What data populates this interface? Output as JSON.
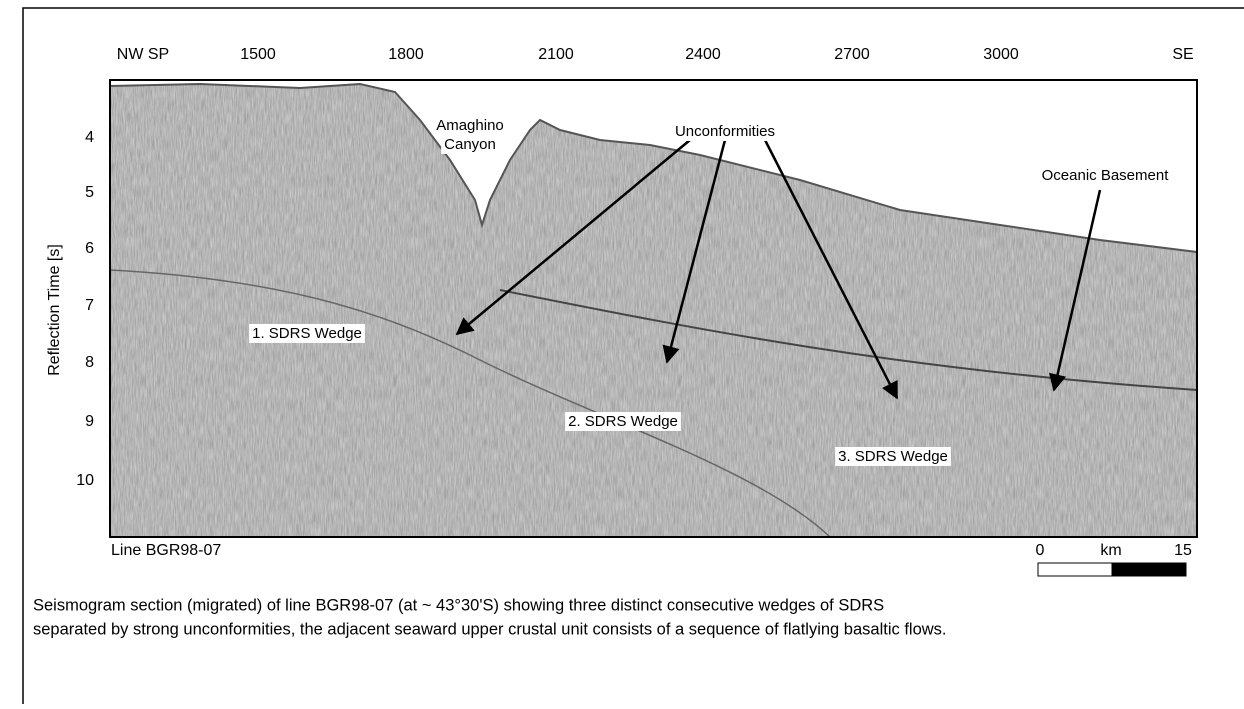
{
  "figure": {
    "top_labels": [
      "NW SP",
      "1500",
      "1800",
      "2100",
      "2400",
      "2700",
      "3000",
      "SE"
    ],
    "left_labels": [
      "4",
      "5",
      "6",
      "7",
      "8",
      "9",
      "10"
    ],
    "y_axis_title": "Reflection Time [s]",
    "annotations": {
      "canyon": [
        "Amaghino",
        "Canyon"
      ],
      "unconformities": "Unconformities",
      "oceanic_basement": "Oceanic Basement",
      "wedge_1": "1. SDRS Wedge",
      "wedge_2": "2. SDRS Wedge",
      "wedge_3": "3. SDRS Wedge"
    },
    "line_name": "Line BGR98-07",
    "scale_bar": {
      "start": "0",
      "unit": "km",
      "end": "15"
    }
  },
  "caption_lines": [
    "Seismogram section (migrated) of line BGR98-07 (at ~ 43°30'S) showing three distinct consecutive wedges of SDRS",
    "separated by strong unconformities, the adjacent seaward upper crustal unit consists of a sequence of flatlying basaltic flows."
  ]
}
